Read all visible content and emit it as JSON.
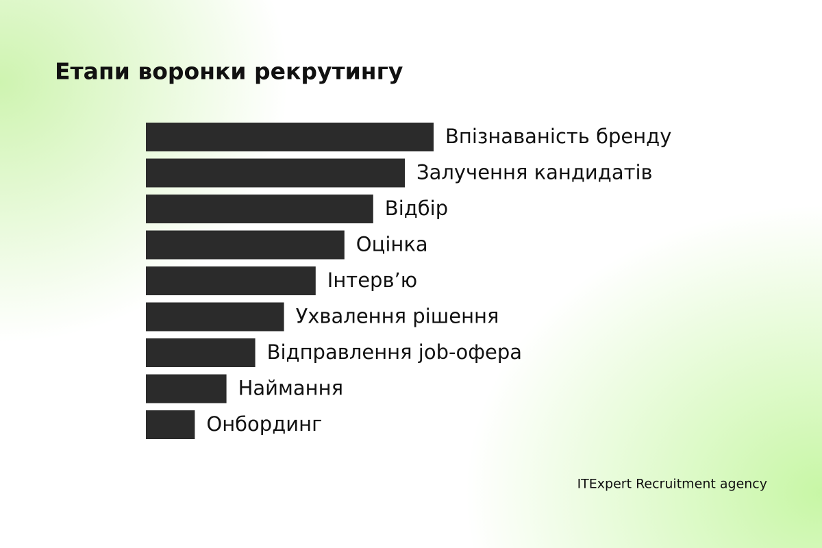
{
  "chart_data": {
    "type": "bar",
    "orientation": "horizontal",
    "title": "Етапи воронки рекрутингу",
    "categories": [
      "Впізнаваність бренду",
      "Залучення кандидатів",
      "Відбір",
      "Оцінка",
      "Інтерв’ю",
      "Ухвалення рішення",
      "Відправлення job-офера",
      "Наймання",
      "Онбординг"
    ],
    "values": [
      100,
      90,
      79,
      69,
      59,
      48,
      38,
      28,
      17
    ],
    "color": "#2b2b2b"
  },
  "footer": "ITExpert Recruitment agency"
}
